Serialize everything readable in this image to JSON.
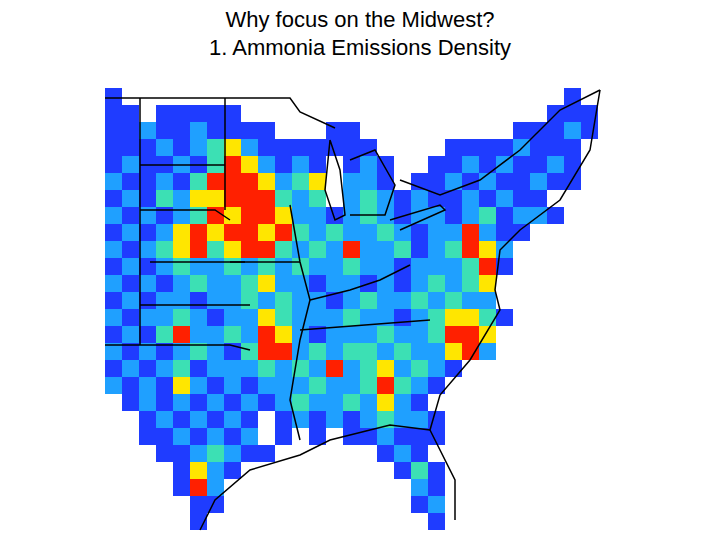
{
  "chart_data": {
    "type": "heatmap",
    "title": "Why focus on the Midwest?",
    "subtitle": "1. Ammonia Emissions Density",
    "tick_labels": false,
    "colors": [
      "#ffffff",
      "#1f3cff",
      "#1fa0ff",
      "#3ce0b4",
      "#ffe600",
      "#ff2000"
    ],
    "cells": [
      [
        1,
        0,
        0,
        0,
        0,
        0,
        0,
        0,
        0,
        0,
        0,
        0,
        0,
        0,
        0,
        0,
        0,
        0,
        0,
        0,
        0,
        0,
        0,
        0,
        0,
        0,
        0,
        1,
        0,
        0
      ],
      [
        1,
        1,
        0,
        1,
        1,
        1,
        1,
        1,
        0,
        0,
        0,
        0,
        0,
        0,
        0,
        0,
        0,
        0,
        0,
        0,
        0,
        0,
        0,
        0,
        0,
        0,
        1,
        1,
        1,
        0
      ],
      [
        1,
        1,
        2,
        1,
        1,
        2,
        1,
        1,
        1,
        1,
        0,
        0,
        0,
        1,
        1,
        0,
        0,
        0,
        0,
        0,
        0,
        0,
        0,
        0,
        1,
        1,
        1,
        2,
        1,
        0
      ],
      [
        1,
        1,
        1,
        2,
        1,
        2,
        3,
        4,
        2,
        1,
        1,
        1,
        1,
        1,
        1,
        1,
        0,
        0,
        0,
        0,
        1,
        1,
        1,
        1,
        2,
        1,
        1,
        1,
        0,
        0
      ],
      [
        1,
        2,
        1,
        1,
        2,
        1,
        3,
        5,
        4,
        2,
        1,
        2,
        1,
        0,
        1,
        2,
        1,
        0,
        0,
        1,
        1,
        2,
        1,
        2,
        1,
        1,
        2,
        1,
        0,
        0
      ],
      [
        2,
        1,
        1,
        2,
        1,
        3,
        5,
        5,
        5,
        4,
        2,
        3,
        4,
        0,
        2,
        2,
        1,
        0,
        1,
        1,
        2,
        1,
        2,
        1,
        1,
        2,
        1,
        1,
        0,
        0
      ],
      [
        1,
        2,
        1,
        3,
        2,
        4,
        4,
        5,
        5,
        5,
        3,
        2,
        3,
        0,
        2,
        3,
        2,
        1,
        2,
        1,
        1,
        2,
        1,
        2,
        1,
        1,
        0,
        0,
        0,
        0
      ],
      [
        2,
        1,
        2,
        1,
        2,
        3,
        5,
        4,
        5,
        5,
        4,
        2,
        2,
        1,
        2,
        3,
        2,
        1,
        2,
        2,
        1,
        2,
        3,
        1,
        2,
        2,
        1,
        0,
        0,
        0
      ],
      [
        1,
        2,
        1,
        2,
        4,
        5,
        4,
        5,
        5,
        4,
        5,
        3,
        2,
        3,
        2,
        2,
        3,
        2,
        1,
        2,
        2,
        5,
        2,
        1,
        1,
        0,
        0,
        0,
        0,
        0
      ],
      [
        2,
        1,
        2,
        3,
        4,
        5,
        3,
        4,
        5,
        5,
        3,
        2,
        3,
        2,
        5,
        2,
        2,
        3,
        1,
        2,
        3,
        5,
        4,
        2,
        0,
        0,
        0,
        0,
        0,
        0
      ],
      [
        1,
        2,
        1,
        2,
        3,
        2,
        2,
        3,
        2,
        3,
        2,
        3,
        2,
        2,
        3,
        2,
        2,
        1,
        2,
        2,
        2,
        3,
        5,
        1,
        0,
        0,
        0,
        0,
        0,
        0
      ],
      [
        2,
        1,
        2,
        1,
        2,
        3,
        2,
        2,
        3,
        4,
        2,
        2,
        1,
        2,
        2,
        1,
        2,
        1,
        2,
        3,
        2,
        3,
        4,
        0,
        0,
        0,
        0,
        0,
        0,
        0
      ],
      [
        1,
        2,
        1,
        2,
        2,
        1,
        2,
        2,
        3,
        2,
        3,
        2,
        2,
        1,
        2,
        3,
        2,
        2,
        3,
        2,
        3,
        2,
        2,
        0,
        0,
        0,
        0,
        0,
        0,
        0
      ],
      [
        2,
        1,
        2,
        2,
        3,
        2,
        1,
        2,
        2,
        4,
        3,
        2,
        2,
        2,
        3,
        2,
        2,
        1,
        2,
        3,
        4,
        4,
        3,
        1,
        0,
        0,
        0,
        0,
        0,
        0
      ],
      [
        1,
        2,
        1,
        3,
        5,
        2,
        2,
        3,
        2,
        5,
        4,
        2,
        1,
        2,
        2,
        2,
        3,
        2,
        2,
        3,
        5,
        5,
        4,
        0,
        0,
        0,
        0,
        0,
        0,
        0
      ],
      [
        2,
        1,
        2,
        1,
        2,
        3,
        2,
        1,
        3,
        5,
        5,
        2,
        3,
        2,
        3,
        3,
        2,
        3,
        2,
        2,
        4,
        5,
        2,
        0,
        0,
        0,
        0,
        0,
        0,
        0
      ],
      [
        1,
        2,
        1,
        2,
        3,
        1,
        2,
        2,
        2,
        3,
        2,
        3,
        2,
        5,
        2,
        3,
        4,
        2,
        3,
        2,
        1,
        0,
        0,
        0,
        0,
        0,
        0,
        0,
        0,
        0
      ],
      [
        2,
        1,
        2,
        1,
        4,
        2,
        1,
        2,
        1,
        2,
        2,
        2,
        3,
        2,
        2,
        3,
        5,
        3,
        2,
        1,
        0,
        0,
        0,
        0,
        0,
        0,
        0,
        0,
        0,
        0
      ],
      [
        0,
        1,
        2,
        1,
        2,
        1,
        2,
        1,
        2,
        1,
        2,
        3,
        2,
        2,
        3,
        2,
        4,
        2,
        1,
        0,
        0,
        0,
        0,
        0,
        0,
        0,
        0,
        0,
        0,
        0
      ],
      [
        0,
        0,
        1,
        2,
        1,
        2,
        1,
        2,
        1,
        0,
        1,
        2,
        1,
        2,
        1,
        2,
        3,
        2,
        2,
        1,
        0,
        0,
        0,
        0,
        0,
        0,
        0,
        0,
        0,
        0
      ],
      [
        0,
        0,
        1,
        1,
        2,
        1,
        2,
        1,
        2,
        0,
        1,
        0,
        1,
        0,
        1,
        1,
        2,
        1,
        1,
        1,
        0,
        0,
        0,
        0,
        0,
        0,
        0,
        0,
        0,
        0
      ],
      [
        0,
        0,
        0,
        1,
        1,
        2,
        3,
        2,
        1,
        1,
        0,
        0,
        0,
        0,
        0,
        0,
        1,
        2,
        1,
        0,
        0,
        0,
        0,
        0,
        0,
        0,
        0,
        0,
        0,
        0
      ],
      [
        0,
        0,
        0,
        0,
        1,
        4,
        2,
        1,
        0,
        0,
        0,
        0,
        0,
        0,
        0,
        0,
        0,
        1,
        3,
        1,
        0,
        0,
        0,
        0,
        0,
        0,
        0,
        0,
        0,
        0
      ],
      [
        0,
        0,
        0,
        0,
        1,
        5,
        2,
        0,
        0,
        0,
        0,
        0,
        0,
        0,
        0,
        0,
        0,
        0,
        2,
        1,
        0,
        0,
        0,
        0,
        0,
        0,
        0,
        0,
        0,
        0
      ],
      [
        0,
        0,
        0,
        0,
        0,
        1,
        1,
        0,
        0,
        0,
        0,
        0,
        0,
        0,
        0,
        0,
        0,
        0,
        1,
        2,
        0,
        0,
        0,
        0,
        0,
        0,
        0,
        0,
        0,
        0
      ],
      [
        0,
        0,
        0,
        0,
        0,
        1,
        0,
        0,
        0,
        0,
        0,
        0,
        0,
        0,
        0,
        0,
        0,
        0,
        0,
        1,
        0,
        0,
        0,
        0,
        0,
        0,
        0,
        0,
        0,
        0
      ]
    ]
  }
}
